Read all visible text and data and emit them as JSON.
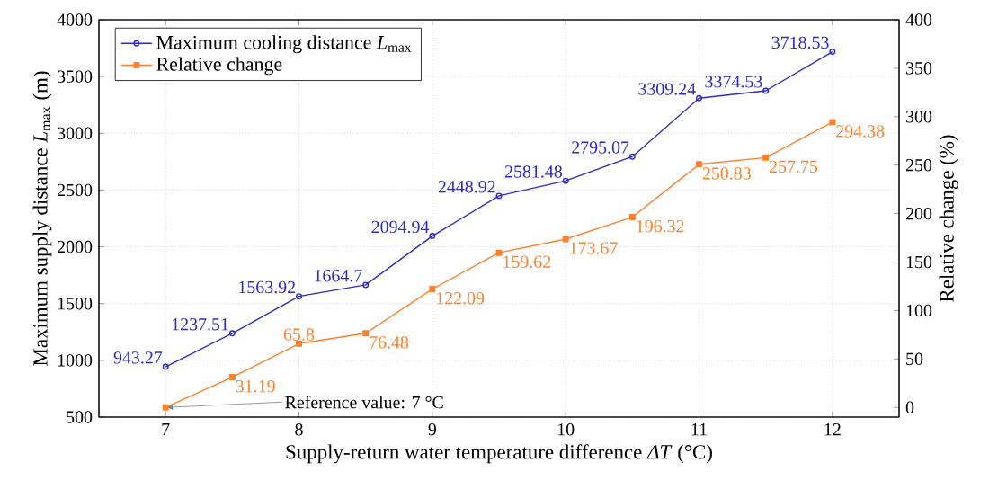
{
  "chart_data": {
    "type": "line",
    "xlabel": "Supply-return water temperature difference *ΔT* (°C)",
    "ylabel": "Maximum supply distance *L*$_{max}$ (m)",
    "y2label": "Relative change (%)",
    "x": [
      7,
      7.5,
      8,
      8.5,
      9,
      9.5,
      10,
      10.5,
      11,
      11.5,
      12
    ],
    "series": [
      {
        "name": "Maximum cooling distance *L*$_{max}$",
        "color": "#2b2bcc",
        "marker": "circle",
        "values": [
          943.27,
          1237.51,
          1563.92,
          1664.7,
          2094.94,
          2448.92,
          2581.48,
          2795.07,
          3309.24,
          3374.53,
          3718.53
        ],
        "value_labels": [
          "943.27",
          "1237.51",
          "1563.92",
          "1664.7",
          "2094.94",
          "2448.92",
          "2581.48",
          "2795.07",
          "3309.24",
          "3374.53",
          "3718.53"
        ]
      },
      {
        "name": "Relative change",
        "color": "#ff7f2a",
        "marker": "square",
        "axis": "y2",
        "values": [
          0,
          31.19,
          65.8,
          76.48,
          122.09,
          159.62,
          173.67,
          196.32,
          250.83,
          257.75,
          294.38
        ],
        "value_labels": [
          null,
          "31.19",
          "65.8",
          "76.48",
          "122.09",
          "159.62",
          "173.67",
          "196.32",
          "250.83",
          "257.75",
          "294.38"
        ]
      }
    ],
    "xlim": [
      6.5,
      12.5
    ],
    "xticks": [
      7,
      8,
      9,
      10,
      11,
      12
    ],
    "ylim": [
      500,
      4000
    ],
    "yticks": [
      500,
      1000,
      1500,
      2000,
      2500,
      3000,
      3500,
      4000
    ],
    "y2lim": [
      -10,
      400
    ],
    "y2ticks": [
      0,
      50,
      100,
      150,
      200,
      250,
      300,
      350,
      400
    ],
    "annotations": [
      {
        "text": "Reference value: 7 °C",
        "x": 7,
        "y": 585
      }
    ],
    "grid": true,
    "legend": "top left"
  }
}
